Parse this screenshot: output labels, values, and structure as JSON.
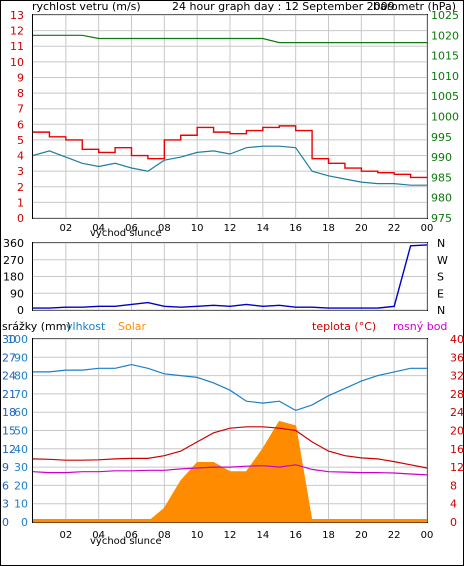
{
  "header": {
    "left_label": "rychlost vetru (m/s)",
    "title": "24 hour graph day : 12 September 2009",
    "right_label": "barometr (hPa)"
  },
  "colors": {
    "wind_gust": "#ee0000",
    "wind_avg": "#1a7fa0",
    "barometer": "#0a7a0a",
    "direction": "#0000c8",
    "humidity": "#1a7fc8",
    "solar": "#ff8c00",
    "temperature": "#cc0000",
    "dewpoint": "#cc00cc",
    "rain": "#2060c0"
  },
  "x_axis": {
    "ticks": [
      "02",
      "04",
      "06",
      "08",
      "10",
      "12",
      "14",
      "16",
      "18",
      "20",
      "22",
      "00"
    ],
    "subtitle_label": "východ slunce"
  },
  "chart_data": [
    {
      "type": "line",
      "panel": "wind-pressure",
      "title": "24 hour graph day : 12 September 2009",
      "ylabel": "rychlost vetru (m/s)",
      "ylabel_right": "barometr (hPa)",
      "ylim": [
        0,
        13
      ],
      "ylim_right": [
        975,
        1025
      ],
      "yticks": [
        "0",
        "1",
        "2",
        "3",
        "4",
        "5",
        "6",
        "7",
        "8",
        "9",
        "10",
        "11",
        "12",
        "13"
      ],
      "yticks_right": [
        "975",
        "980",
        "985",
        "990",
        "995",
        "1000",
        "1005",
        "1010",
        "1015",
        "1020",
        "1025"
      ],
      "x_hours": [
        0,
        1,
        2,
        3,
        4,
        5,
        6,
        7,
        8,
        9,
        10,
        11,
        12,
        13,
        14,
        15,
        16,
        17,
        18,
        19,
        20,
        21,
        22,
        23,
        24
      ],
      "series": [
        {
          "key": "gust",
          "values": [
            5.5,
            5.2,
            5.0,
            4.4,
            4.2,
            4.5,
            4.0,
            3.8,
            5.0,
            5.3,
            5.8,
            5.5,
            5.4,
            5.6,
            5.8,
            5.9,
            5.6,
            3.8,
            3.5,
            3.2,
            3.0,
            2.9,
            2.8,
            2.6,
            2.6
          ]
        },
        {
          "key": "avg",
          "values": [
            4.0,
            4.3,
            3.9,
            3.5,
            3.3,
            3.5,
            3.2,
            3.0,
            3.7,
            3.9,
            4.2,
            4.3,
            4.1,
            4.5,
            4.6,
            4.6,
            4.5,
            3.0,
            2.7,
            2.5,
            2.3,
            2.2,
            2.2,
            2.1,
            2.1
          ]
        },
        {
          "key": "pressure",
          "axis": "right",
          "values": [
            1020,
            1020,
            1020,
            1020,
            1019.2,
            1019.2,
            1019.2,
            1019.2,
            1019.2,
            1019.2,
            1019.2,
            1019.2,
            1019.2,
            1019.2,
            1019.2,
            1018.2,
            1018.2,
            1018.2,
            1018.2,
            1018.2,
            1018.2,
            1018.2,
            1018.2,
            1018.2,
            1018.2
          ]
        }
      ]
    },
    {
      "type": "line",
      "panel": "wind-direction",
      "ylim": [
        0,
        360
      ],
      "yticks": [
        "0",
        "90",
        "180",
        "270",
        "360"
      ],
      "yticks_right": [
        "N",
        "E",
        "S",
        "W",
        "N"
      ],
      "x_hours": [
        0,
        1,
        2,
        3,
        4,
        5,
        6,
        7,
        8,
        9,
        10,
        11,
        12,
        13,
        14,
        15,
        16,
        17,
        18,
        19,
        20,
        21,
        22,
        23,
        24
      ],
      "series": [
        {
          "key": "direction",
          "values": [
            10,
            10,
            15,
            15,
            20,
            20,
            30,
            40,
            20,
            15,
            20,
            25,
            20,
            30,
            20,
            25,
            15,
            15,
            10,
            10,
            10,
            10,
            20,
            345,
            350
          ]
        }
      ]
    },
    {
      "type": "area",
      "panel": "temperature-humidity-solar",
      "ylabel": "srážky (mm)",
      "legend": [
        "vlhkost",
        "Solar",
        "teplota (°C)",
        "rosný bod"
      ],
      "yticks_rain": [
        "0",
        "3",
        "6",
        "9",
        "12",
        "15",
        "18",
        "21",
        "24",
        "27",
        "30"
      ],
      "yticks_humidity": [
        "0",
        "10",
        "20",
        "30",
        "40",
        "50",
        "60",
        "70",
        "80",
        "90",
        "100"
      ],
      "yticks_right": [
        "0",
        "4",
        "8",
        "12",
        "16",
        "20",
        "24",
        "28",
        "32",
        "36",
        "40"
      ],
      "ylim_right": [
        0,
        40
      ],
      "x_hours": [
        0,
        1,
        2,
        3,
        4,
        5,
        6,
        7,
        8,
        9,
        10,
        11,
        12,
        13,
        14,
        15,
        16,
        17,
        18,
        19,
        20,
        21,
        22,
        23,
        24
      ],
      "series": [
        {
          "key": "humidity",
          "values": [
            82,
            82,
            83,
            83,
            84,
            84,
            86,
            84,
            81,
            80,
            79,
            76,
            72,
            66,
            65,
            66,
            61,
            64,
            69,
            73,
            77,
            80,
            82,
            84,
            84
          ]
        },
        {
          "key": "solar",
          "values": [
            0,
            0,
            0,
            0,
            0,
            0,
            0,
            0,
            3,
            9,
            13,
            13,
            11,
            11,
            16,
            22,
            21,
            0,
            0,
            0,
            0,
            0,
            0,
            0,
            0
          ]
        },
        {
          "key": "temperature",
          "values": [
            13.8,
            13.7,
            13.5,
            13.5,
            13.6,
            13.8,
            13.9,
            13.9,
            14.5,
            15.5,
            17.5,
            19.5,
            20.5,
            20.8,
            20.8,
            20.5,
            20.0,
            17.5,
            15.5,
            14.5,
            14.0,
            13.8,
            13.2,
            12.5,
            11.8
          ]
        },
        {
          "key": "dewpoint",
          "values": [
            11.0,
            10.8,
            10.8,
            11.0,
            11.0,
            11.2,
            11.2,
            11.3,
            11.3,
            11.6,
            11.8,
            12.0,
            12.0,
            12.2,
            12.3,
            12.0,
            12.5,
            11.5,
            11.0,
            10.9,
            10.8,
            10.8,
            10.7,
            10.5,
            10.3
          ]
        },
        {
          "key": "rain",
          "values": [
            0,
            0,
            0,
            0,
            0,
            0,
            0,
            0,
            0,
            0,
            0,
            0,
            0,
            0,
            0,
            0,
            0,
            0,
            0,
            0,
            0,
            0,
            0,
            0,
            0
          ]
        }
      ]
    }
  ]
}
